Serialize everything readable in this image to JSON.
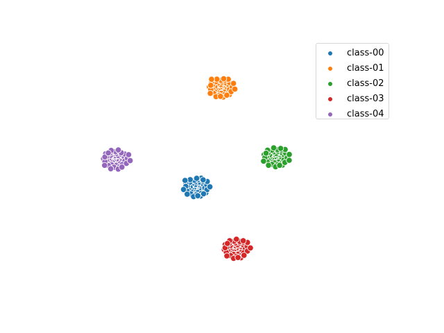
{
  "chart_data": {
    "type": "scatter",
    "axes_visible": false,
    "grid": false,
    "legend_position": "upper-right",
    "xlim": [
      0,
      100
    ],
    "ylim": [
      0,
      100
    ],
    "series": [
      {
        "name": "class-00",
        "color": "#1f77b4",
        "center": [
          40.9,
          42.7
        ],
        "radius": 3.9,
        "count": 60
      },
      {
        "name": "class-01",
        "color": "#ff7f0e",
        "center": [
          48.1,
          81.5
        ],
        "radius": 3.9,
        "count": 60
      },
      {
        "name": "class-02",
        "color": "#2ca02c",
        "center": [
          64.0,
          54.5
        ],
        "radius": 3.9,
        "count": 60
      },
      {
        "name": "class-03",
        "color": "#d62728",
        "center": [
          52.5,
          18.8
        ],
        "radius": 3.9,
        "count": 60
      },
      {
        "name": "class-04",
        "color": "#9467bd",
        "center": [
          17.5,
          53.6
        ],
        "radius": 3.9,
        "count": 60
      }
    ]
  }
}
